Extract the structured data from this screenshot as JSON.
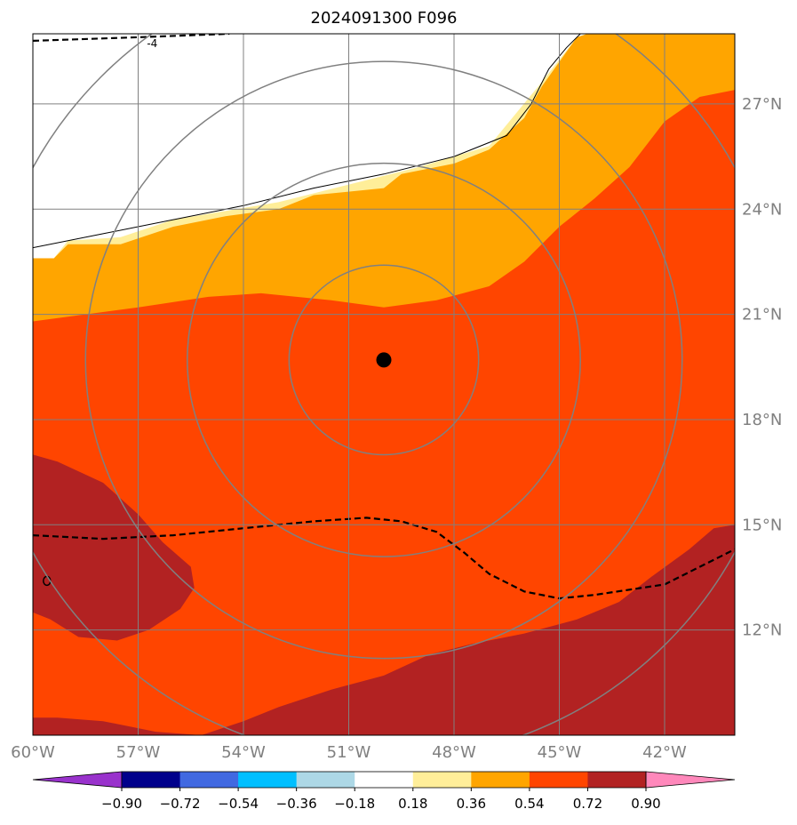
{
  "chart_data": {
    "type": "heatmap",
    "title": "2024091300 F096",
    "projection": "lat-lon map",
    "lon_range": [
      -60,
      -40
    ],
    "lat_range": [
      9,
      29
    ],
    "x_ticks": [
      {
        "value": -60,
        "label": "60°W"
      },
      {
        "value": -57,
        "label": "57°W"
      },
      {
        "value": -54,
        "label": "54°W"
      },
      {
        "value": -51,
        "label": "51°W"
      },
      {
        "value": -48,
        "label": "48°W"
      },
      {
        "value": -45,
        "label": "45°W"
      },
      {
        "value": -42,
        "label": "42°W"
      }
    ],
    "y_ticks": [
      {
        "value": 12,
        "label": "12°N"
      },
      {
        "value": 15,
        "label": "15°N"
      },
      {
        "value": 18,
        "label": "18°N"
      },
      {
        "value": 21,
        "label": "21°N"
      },
      {
        "value": 24,
        "label": "24°N"
      },
      {
        "value": 27,
        "label": "27°N"
      }
    ],
    "center_marker": {
      "lon": -50.0,
      "lat": 19.7
    },
    "range_rings_deg": [
      2.7,
      5.6,
      8.5,
      11.4
    ],
    "grid": true,
    "colorbar": {
      "orientation": "horizontal",
      "extend": "both",
      "bounds": [
        -0.9,
        -0.72,
        -0.54,
        -0.36,
        -0.18,
        0.18,
        0.36,
        0.54,
        0.72,
        0.9
      ],
      "tick_labels": [
        "−0.90",
        "−0.72",
        "−0.54",
        "−0.36",
        "−0.18",
        "0.18",
        "0.36",
        "0.54",
        "0.72",
        "0.90"
      ],
      "colors": [
        "#9932cc",
        "#00008b",
        "#4169e1",
        "#00bfff",
        "#add8e6",
        "#ffffff",
        "#ffee99",
        "#ffa500",
        "#ff4500",
        "#b22222",
        "#ff88bb"
      ]
    },
    "filled_regions": [
      {
        "band": "0.18 to 0.36",
        "color": "#ffee99",
        "polygon": [
          [
            -60,
            22.6
          ],
          [
            -59.4,
            22.6
          ],
          [
            -59,
            23.1
          ],
          [
            -57.5,
            23.2
          ],
          [
            -56,
            23.7
          ],
          [
            -53,
            24.2
          ],
          [
            -49,
            25.2
          ],
          [
            -47,
            25.8
          ],
          [
            -45.6,
            27.5
          ],
          [
            -44.5,
            28.9
          ],
          [
            -44.2,
            29
          ],
          [
            -40,
            29
          ],
          [
            -40,
            9
          ],
          [
            -60,
            9
          ]
        ]
      },
      {
        "band": "0.36 to 0.54",
        "color": "#ffa500",
        "polygon": [
          [
            -60,
            22.6
          ],
          [
            -59.4,
            22.6
          ],
          [
            -59,
            23.0
          ],
          [
            -57.5,
            23.0
          ],
          [
            -56,
            23.5
          ],
          [
            -54.5,
            23.8
          ],
          [
            -53,
            24.0
          ],
          [
            -52,
            24.4
          ],
          [
            -50,
            24.6
          ],
          [
            -49.5,
            25.0
          ],
          [
            -48,
            25.3
          ],
          [
            -47,
            25.7
          ],
          [
            -46,
            26.6
          ],
          [
            -45.5,
            27.5
          ],
          [
            -45,
            28.2
          ],
          [
            -44.5,
            28.9
          ],
          [
            -44.2,
            29
          ],
          [
            -40,
            29
          ],
          [
            -40,
            9
          ],
          [
            -60,
            9
          ]
        ]
      },
      {
        "band": "0.54 to 0.72",
        "color": "#ff4500",
        "polygon": [
          [
            -60,
            20.8
          ],
          [
            -57,
            21.2
          ],
          [
            -55,
            21.5
          ],
          [
            -53.5,
            21.6
          ],
          [
            -51.5,
            21.4
          ],
          [
            -50,
            21.2
          ],
          [
            -48.5,
            21.4
          ],
          [
            -47,
            21.8
          ],
          [
            -46,
            22.5
          ],
          [
            -45,
            23.5
          ],
          [
            -44,
            24.3
          ],
          [
            -43,
            25.2
          ],
          [
            -42,
            26.5
          ],
          [
            -41,
            27.2
          ],
          [
            -40,
            27.4
          ],
          [
            -40,
            9
          ],
          [
            -60,
            9
          ]
        ]
      },
      {
        "band": "0.72 to 0.90",
        "color": "#b22222",
        "polygon": [
          [
            -60,
            17.0
          ],
          [
            -59.3,
            16.8
          ],
          [
            -58,
            16.2
          ],
          [
            -57,
            15.3
          ],
          [
            -56.3,
            14.5
          ],
          [
            -55.5,
            13.8
          ],
          [
            -55.4,
            13.2
          ],
          [
            -55.8,
            12.6
          ],
          [
            -56.7,
            12.0
          ],
          [
            -57.6,
            11.7
          ],
          [
            -58.7,
            11.8
          ],
          [
            -59.5,
            12.3
          ],
          [
            -60,
            12.5
          ]
        ]
      },
      {
        "band": "0.72 to 0.90",
        "color": "#b22222",
        "polygon": [
          [
            -60,
            9.5
          ],
          [
            -59.3,
            9.5
          ],
          [
            -58,
            9.4
          ],
          [
            -56.5,
            9.1
          ],
          [
            -55.2,
            9
          ],
          [
            -60,
            9
          ]
        ]
      },
      {
        "band": "0.72 to 0.90",
        "color": "#b22222",
        "polygon": [
          [
            -55.2,
            9
          ],
          [
            -54,
            9.4
          ],
          [
            -53,
            9.8
          ],
          [
            -51.5,
            10.3
          ],
          [
            -50,
            10.7
          ],
          [
            -48.7,
            11.3
          ],
          [
            -47.5,
            11.6
          ],
          [
            -46,
            11.9
          ],
          [
            -44.5,
            12.3
          ],
          [
            -43.3,
            12.8
          ],
          [
            -42.4,
            13.5
          ],
          [
            -41.3,
            14.3
          ],
          [
            -40.6,
            14.9
          ],
          [
            -40,
            15.0
          ],
          [
            -40,
            9
          ]
        ]
      }
    ],
    "boundary_line": [
      [
        -60,
        22.9
      ],
      [
        -58,
        23.3
      ],
      [
        -56,
        23.7
      ],
      [
        -54,
        24.1
      ],
      [
        -52,
        24.6
      ],
      [
        -50,
        25.0
      ],
      [
        -48,
        25.5
      ],
      [
        -46.5,
        26.1
      ],
      [
        -45.8,
        27.0
      ],
      [
        -45.3,
        28.0
      ],
      [
        -44.8,
        28.6
      ],
      [
        -44.4,
        29
      ]
    ],
    "dashed_contours": [
      {
        "label": "-4",
        "points": [
          [
            -60,
            28.8
          ],
          [
            -57,
            28.9
          ],
          [
            -54.4,
            29
          ]
        ]
      },
      {
        "points": [
          [
            -60,
            14.7
          ],
          [
            -58,
            14.6
          ],
          [
            -56,
            14.7
          ],
          [
            -54,
            14.9
          ],
          [
            -52,
            15.1
          ],
          [
            -50.5,
            15.2
          ],
          [
            -49.5,
            15.1
          ],
          [
            -48.5,
            14.8
          ],
          [
            -47.7,
            14.2
          ],
          [
            -47,
            13.6
          ],
          [
            -46,
            13.1
          ],
          [
            -45,
            12.9
          ],
          [
            -44,
            13.0
          ],
          [
            -42,
            13.3
          ],
          [
            -41,
            13.8
          ],
          [
            -40,
            14.3
          ]
        ]
      }
    ],
    "small_contour": {
      "lon": -59.6,
      "lat": 13.4
    }
  }
}
